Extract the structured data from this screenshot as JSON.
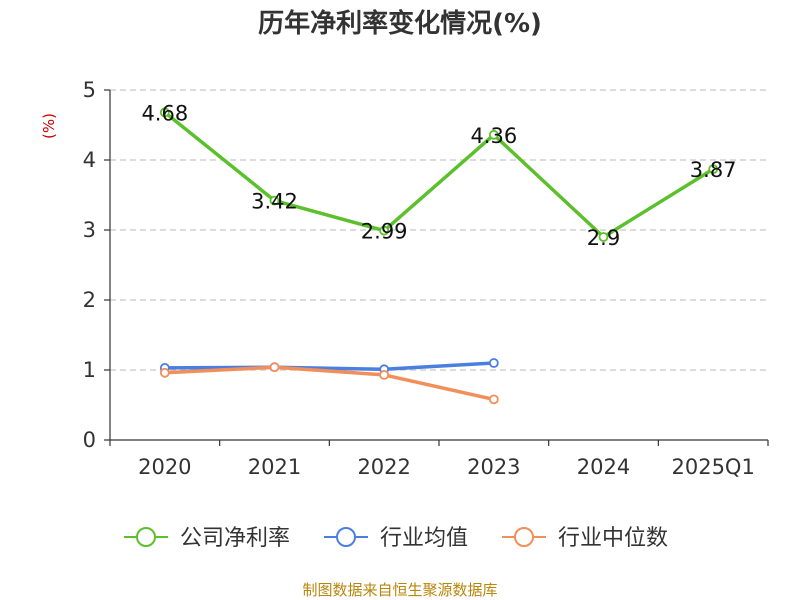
{
  "title": "历年净利率变化情况(%)",
  "source": "制图数据来自恒生聚源数据库",
  "chart_data": {
    "type": "line",
    "title": "历年净利率变化情况(%)",
    "xlabel": "",
    "ylabel": "(%)",
    "categories": [
      "2020",
      "2021",
      "2022",
      "2023",
      "2024",
      "2025Q1"
    ],
    "ylim": [
      0,
      5
    ],
    "yticks": [
      0,
      1,
      2,
      3,
      4,
      5
    ],
    "grid": true,
    "legend_position": "bottom",
    "series": [
      {
        "name": "公司净利率",
        "color": "#5cc02c",
        "values": [
          4.68,
          3.42,
          2.99,
          4.36,
          2.9,
          3.87
        ],
        "show_labels": true
      },
      {
        "name": "行业均值",
        "color": "#4a7fe0",
        "values": [
          1.03,
          1.04,
          1.01,
          1.1,
          null,
          null
        ],
        "show_labels": false
      },
      {
        "name": "行业中位数",
        "color": "#f28e59",
        "values": [
          0.96,
          1.04,
          0.93,
          0.58,
          null,
          null
        ],
        "show_labels": false
      }
    ]
  }
}
